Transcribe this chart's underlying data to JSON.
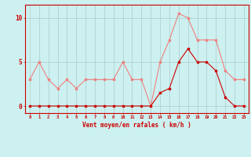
{
  "x": [
    0,
    1,
    2,
    3,
    4,
    5,
    6,
    7,
    8,
    9,
    10,
    11,
    12,
    13,
    14,
    15,
    16,
    17,
    18,
    19,
    20,
    21,
    22,
    23
  ],
  "rafales": [
    3,
    5,
    3,
    2,
    3,
    2,
    3,
    3,
    3,
    3,
    5,
    3,
    3,
    0,
    5,
    7.5,
    10.5,
    10,
    7.5,
    7.5,
    7.5,
    4,
    3,
    3
  ],
  "moyen": [
    0,
    0,
    0,
    0,
    0,
    0,
    0,
    0,
    0,
    0,
    0,
    0,
    0,
    0,
    1.5,
    2,
    5,
    6.5,
    5,
    5,
    4,
    1,
    0,
    0
  ],
  "bg_color": "#cdf0f0",
  "grid_color": "#aacccc",
  "line_color_rafales": "#f08080",
  "line_color_moyen": "#cc0000",
  "xlabel": "Vent moyen/en rafales ( km/h )",
  "yticks": [
    0,
    5,
    10
  ],
  "ylim": [
    -0.8,
    11.5
  ],
  "xlim": [
    -0.5,
    23.5
  ]
}
